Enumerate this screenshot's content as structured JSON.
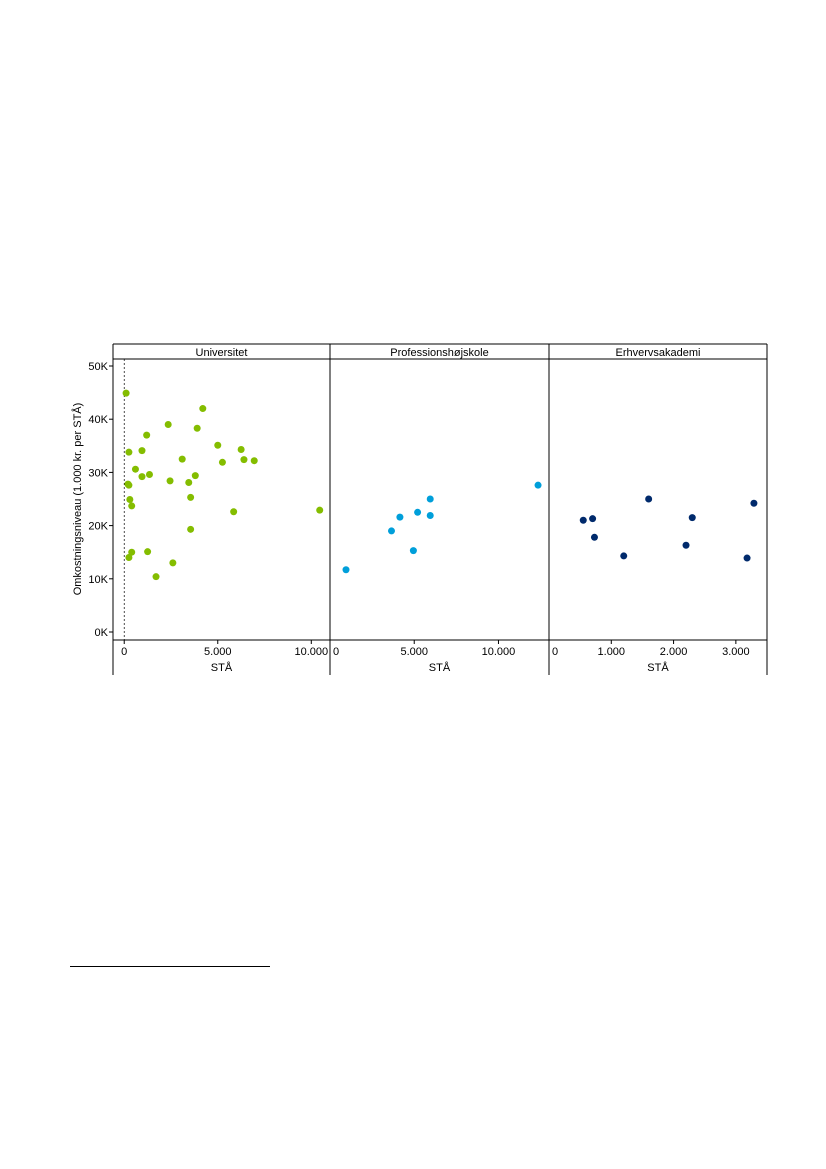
{
  "chart_data": {
    "type": "scatter",
    "ylabel": "Omkostningsniveau (1.000 kr. per STÅ)",
    "ylim": [
      0,
      50
    ],
    "yticks": [
      0,
      10,
      20,
      30,
      40,
      50
    ],
    "ytick_labels": [
      "0K",
      "10K",
      "20K",
      "30K",
      "40K",
      "50K"
    ],
    "grid": false,
    "facets": [
      {
        "name": "Universitet",
        "xlabel": "STÅ",
        "xlim": [
          -600,
          11000
        ],
        "xticks": [
          0,
          5000,
          10000
        ],
        "xtick_labels": [
          "0",
          "5.000",
          "10.000"
        ],
        "reference_line_x": 0,
        "color": "#84bd00",
        "points": [
          {
            "x": 100,
            "y": 44.9
          },
          {
            "x": 250,
            "y": 33.8
          },
          {
            "x": 200,
            "y": 27.8
          },
          {
            "x": 250,
            "y": 27.6
          },
          {
            "x": 300,
            "y": 24.9
          },
          {
            "x": 400,
            "y": 23.7
          },
          {
            "x": 250,
            "y": 14.0
          },
          {
            "x": 400,
            "y": 15.0
          },
          {
            "x": 600,
            "y": 30.6
          },
          {
            "x": 950,
            "y": 29.2
          },
          {
            "x": 950,
            "y": 34.1
          },
          {
            "x": 1200,
            "y": 37.0
          },
          {
            "x": 1350,
            "y": 29.6
          },
          {
            "x": 1250,
            "y": 15.1
          },
          {
            "x": 1700,
            "y": 10.4
          },
          {
            "x": 2350,
            "y": 39.0
          },
          {
            "x": 2450,
            "y": 28.4
          },
          {
            "x": 2600,
            "y": 13.0
          },
          {
            "x": 3100,
            "y": 32.5
          },
          {
            "x": 3450,
            "y": 28.1
          },
          {
            "x": 3550,
            "y": 25.3
          },
          {
            "x": 3550,
            "y": 19.3
          },
          {
            "x": 3800,
            "y": 29.4
          },
          {
            "x": 3900,
            "y": 38.3
          },
          {
            "x": 4200,
            "y": 42.0
          },
          {
            "x": 5000,
            "y": 35.1
          },
          {
            "x": 5250,
            "y": 31.9
          },
          {
            "x": 5850,
            "y": 22.6
          },
          {
            "x": 6250,
            "y": 34.3
          },
          {
            "x": 6400,
            "y": 32.4
          },
          {
            "x": 6950,
            "y": 32.2
          },
          {
            "x": 10450,
            "y": 22.9
          }
        ]
      },
      {
        "name": "Professionshøjskole",
        "xlabel": "STÅ",
        "xlim": [
          0,
          13000
        ],
        "xticks": [
          0,
          5000,
          10000
        ],
        "xtick_labels": [
          "0",
          "5.000",
          "10.000"
        ],
        "color": "#009fda",
        "points": [
          {
            "x": 950,
            "y": 11.7
          },
          {
            "x": 3650,
            "y": 19.0
          },
          {
            "x": 4150,
            "y": 21.6
          },
          {
            "x": 4950,
            "y": 15.3
          },
          {
            "x": 5200,
            "y": 22.5
          },
          {
            "x": 5950,
            "y": 25.0
          },
          {
            "x": 5950,
            "y": 21.9
          },
          {
            "x": 12350,
            "y": 27.6
          }
        ]
      },
      {
        "name": "Erhvervsakademi",
        "xlabel": "STÅ",
        "xlim": [
          0,
          3500
        ],
        "xticks": [
          0,
          1000,
          2000,
          3000
        ],
        "xtick_labels": [
          "0",
          "1.000",
          "2.000",
          "3.000"
        ],
        "color": "#002a6c",
        "points": [
          {
            "x": 550,
            "y": 21.0
          },
          {
            "x": 700,
            "y": 21.3
          },
          {
            "x": 730,
            "y": 17.8
          },
          {
            "x": 1200,
            "y": 14.3
          },
          {
            "x": 1600,
            "y": 25.0
          },
          {
            "x": 2200,
            "y": 16.3
          },
          {
            "x": 2300,
            "y": 21.5
          },
          {
            "x": 3180,
            "y": 13.9
          },
          {
            "x": 3290,
            "y": 24.2
          }
        ]
      }
    ]
  }
}
